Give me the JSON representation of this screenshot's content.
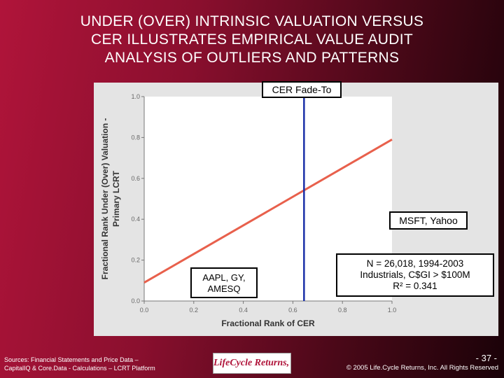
{
  "slide": {
    "title_lines": [
      "UNDER (OVER) INTRINSIC VALUATION VERSUS",
      "CER ILLUSTRATES EMPIRICAL VALUE AUDIT",
      "ANALYSIS OF OUTLIERS AND PATTERNS"
    ],
    "sources_lines": [
      "Sources: Financial Statements and Price Data –",
      "CapitalIQ & Core.Data - Calculations – LCRT Platform"
    ],
    "logo_text": "LifeCycle Returns, Inc.",
    "page_number": "- 37 -",
    "copyright": "© 2005 Life.Cycle Returns, Inc. All Rights Reserved"
  },
  "callouts": {
    "fade": "CER Fade-To",
    "msft": "MSFT, Yahoo",
    "aapl_lines": [
      "AAPL, GY,",
      "AMESQ"
    ],
    "n_lines": [
      "N = 26,018, 1994-2003",
      "Industrials, C$GI > $100M",
      "R² = 0.341"
    ]
  },
  "chart_data": {
    "type": "scatter",
    "title": "",
    "xlabel": "Fractional Rank of CER",
    "ylabel_lines": [
      "Fractional Rank Under (Over) Valuation -",
      "Primary LCRT"
    ],
    "xlim": [
      0.0,
      1.0
    ],
    "ylim": [
      0.0,
      1.0
    ],
    "x_ticks": [
      "0.0",
      "0.2",
      "0.4",
      "0.6",
      "0.8",
      "1.0"
    ],
    "y_ticks": [
      "0.0",
      "0.2",
      "0.4",
      "0.6",
      "0.8",
      "1.0"
    ],
    "point_count": 26018,
    "regression_line": {
      "x": [
        0.0,
        1.0
      ],
      "y": [
        0.09,
        0.79
      ],
      "color": "#e8604c"
    },
    "reference_line": {
      "x": 0.645,
      "label": "CER Fade-To",
      "color": "#1a2fa8"
    },
    "r_squared": 0.341,
    "marker_color": "#111111",
    "grid": false
  }
}
